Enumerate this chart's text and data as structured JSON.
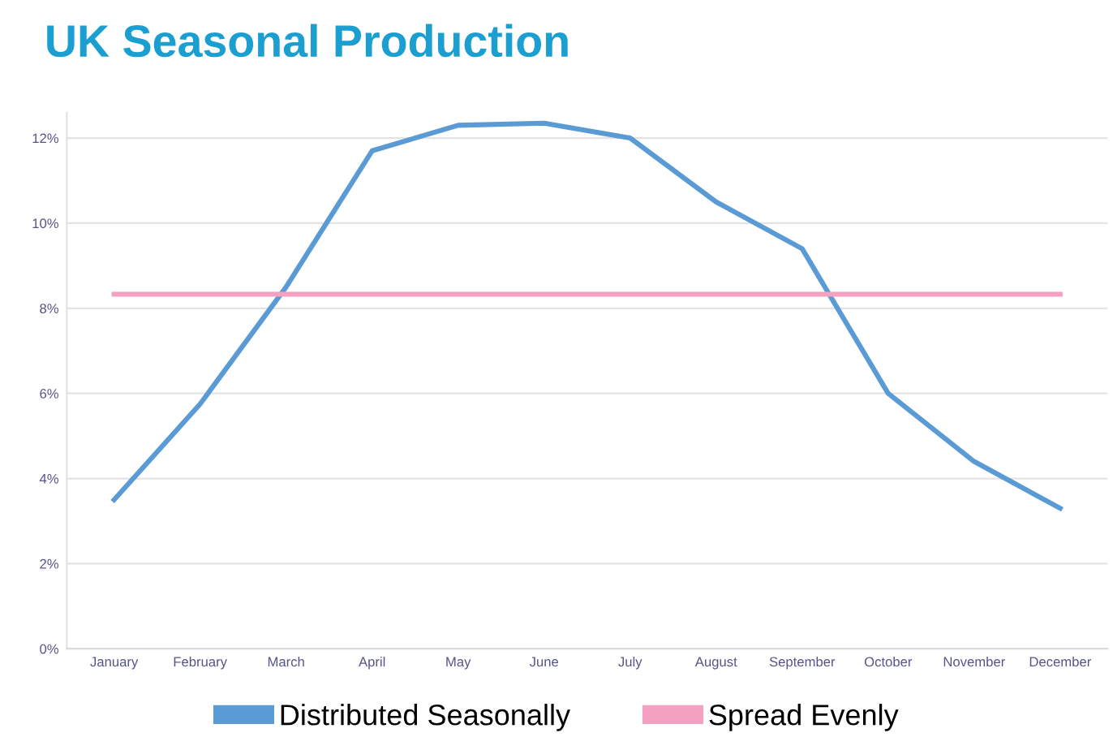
{
  "chart_data": {
    "type": "line",
    "title": "UK Seasonal Production",
    "categories": [
      "January",
      "February",
      "March",
      "April",
      "May",
      "June",
      "July",
      "August",
      "September",
      "October",
      "November",
      "December"
    ],
    "series": [
      {
        "name": "Distributed Seasonally",
        "color": "#5b9bd5",
        "values": [
          3.5,
          5.75,
          8.5,
          11.7,
          12.3,
          12.35,
          12.0,
          10.5,
          9.4,
          6.0,
          4.4,
          3.3
        ]
      },
      {
        "name": "Spread Evenly",
        "color": "#f4a0c0",
        "values": [
          8.33,
          8.33,
          8.33,
          8.33,
          8.33,
          8.33,
          8.33,
          8.33,
          8.33,
          8.33,
          8.33,
          8.33
        ]
      }
    ],
    "ylim": [
      0,
      12.6
    ],
    "yticks": [
      {
        "value": 0,
        "label": "0%"
      },
      {
        "value": 2,
        "label": "2%"
      },
      {
        "value": 4,
        "label": "4%"
      },
      {
        "value": 6,
        "label": "6%"
      },
      {
        "value": 8,
        "label": "8%"
      },
      {
        "value": 10,
        "label": "10%"
      },
      {
        "value": 12,
        "label": "12%"
      }
    ],
    "grid": "y",
    "legend": "bottom",
    "marker": "none",
    "line_style": "solid"
  }
}
